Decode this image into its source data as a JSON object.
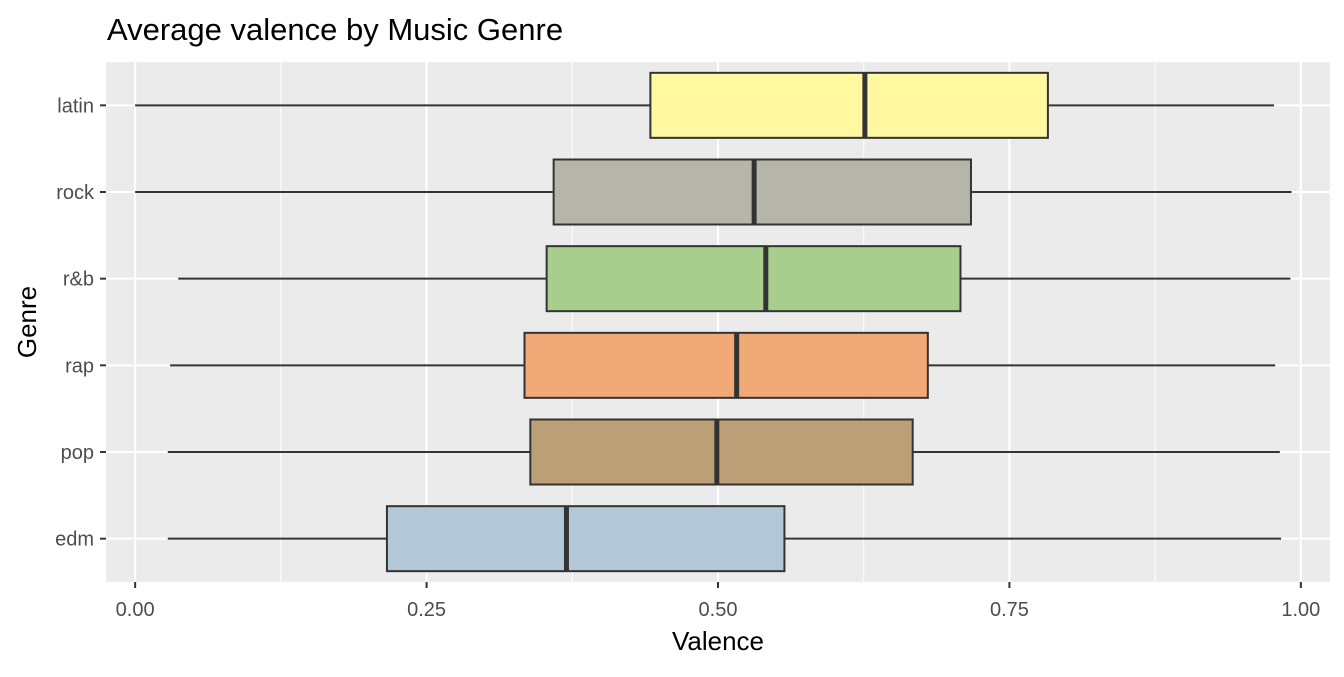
{
  "chart_data": {
    "type": "boxplot",
    "title": "Average valence by Music Genre",
    "xlabel": "Valence",
    "ylabel": "Genre",
    "xlim": [
      -0.025,
      1.025
    ],
    "x_ticks": [
      0.0,
      0.25,
      0.5,
      0.75,
      1.0
    ],
    "x_tick_labels": [
      "0.00",
      "0.25",
      "0.50",
      "0.75",
      "1.00"
    ],
    "orientation": "horizontal",
    "grid": true,
    "legend": "none",
    "categories": [
      "edm",
      "pop",
      "rap",
      "r&b",
      "rock",
      "latin"
    ],
    "boxes": [
      {
        "category": "edm",
        "whisker_low": 0.028,
        "q1": 0.216,
        "median": 0.37,
        "q3": 0.557,
        "whisker_high": 0.983,
        "color": "#b3c7d7"
      },
      {
        "category": "pop",
        "whisker_low": 0.028,
        "q1": 0.339,
        "median": 0.499,
        "q3": 0.667,
        "whisker_high": 0.982,
        "color": "#bc9f76"
      },
      {
        "category": "rap",
        "whisker_low": 0.03,
        "q1": 0.334,
        "median": 0.516,
        "q3": 0.68,
        "whisker_high": 0.978,
        "color": "#f1a978"
      },
      {
        "category": "r&b",
        "whisker_low": 0.037,
        "q1": 0.353,
        "median": 0.541,
        "q3": 0.708,
        "whisker_high": 0.991,
        "color": "#a8ce8e"
      },
      {
        "category": "rock",
        "whisker_low": 0.0,
        "q1": 0.359,
        "median": 0.531,
        "q3": 0.717,
        "whisker_high": 0.992,
        "color": "#b5b5a9"
      },
      {
        "category": "latin",
        "whisker_low": 0.0,
        "q1": 0.442,
        "median": 0.626,
        "q3": 0.783,
        "whisker_high": 0.977,
        "color": "#fff8a1"
      }
    ],
    "colors": {
      "panel_background": "#ebebeb",
      "grid": "#ffffff",
      "box_outline": "#333333",
      "tick_text": "#4d4d4d"
    }
  }
}
